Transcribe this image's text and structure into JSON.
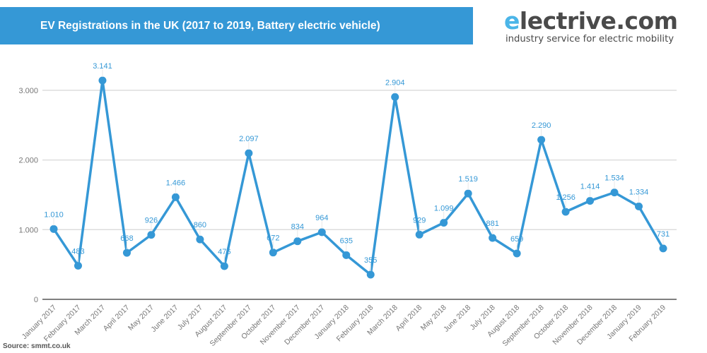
{
  "header": {
    "title": "EV Registrations in the UK (2017 to 2019, Battery electric vehicle)"
  },
  "logo": {
    "first_letter": "e",
    "rest": "lectrive.com",
    "tagline": "industry service for electric mobility"
  },
  "footer": {
    "source": "Source: smmt.co.uk"
  },
  "colors": {
    "banner": "#3598d6",
    "series": "#3598d6",
    "label": "#3598d6",
    "grid": "#dddddd",
    "axis": "#555555",
    "tick_text": "#777777"
  },
  "chart_data": {
    "type": "line",
    "title": "EV Registrations in the UK (2017 to 2019, Battery electric vehicle)",
    "xlabel": "",
    "ylabel": "",
    "ylim": [
      0,
      3300
    ],
    "yticks": [
      0,
      1000,
      2000,
      3000
    ],
    "ytick_labels": [
      "0",
      "1.000",
      "2.000",
      "3.000"
    ],
    "grid": true,
    "legend": "none",
    "categories": [
      "January 2017",
      "February 2017",
      "March 2017",
      "April 2017",
      "May 2017",
      "June 2017",
      "July 2017",
      "August 2017",
      "September 2017",
      "October 2017",
      "November 2017",
      "December 2017",
      "January 2018",
      "February 2018",
      "March 2018",
      "April 2018",
      "May 2018",
      "June 2018",
      "July 2018",
      "August 2018",
      "September 2018",
      "October 2018",
      "November 2018",
      "December 2018",
      "January 2019",
      "February 2019"
    ],
    "series": [
      {
        "name": "Battery electric vehicle",
        "values": [
          1010,
          483,
          3141,
          668,
          926,
          1466,
          860,
          476,
          2097,
          672,
          834,
          964,
          635,
          355,
          2904,
          929,
          1099,
          1519,
          881,
          659,
          2290,
          1256,
          1414,
          1534,
          1334,
          731
        ],
        "labels": [
          "1.010",
          "483",
          "3.141",
          "668",
          "926",
          "1.466",
          "860",
          "476",
          "2.097",
          "672",
          "834",
          "964",
          "635",
          "355",
          "2.904",
          "929",
          "1.099",
          "1.519",
          "881",
          "659",
          "2.290",
          "1.256",
          "1.414",
          "1.534",
          "1.334",
          "731"
        ]
      }
    ]
  }
}
